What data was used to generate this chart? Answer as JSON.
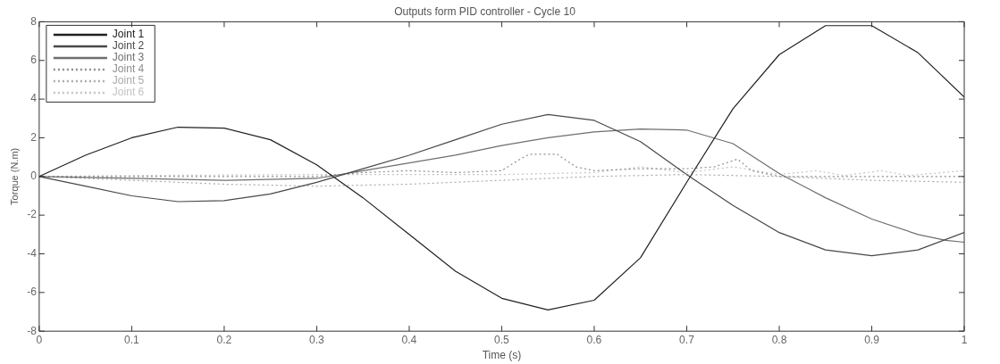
{
  "chart_data": {
    "type": "line",
    "title": "Outputs form PID controller - Cycle 10",
    "xlabel": "Time (s)",
    "ylabel": "Torque (N.m)",
    "xlim": [
      0,
      1
    ],
    "xticks": [
      0,
      0.1,
      0.2,
      0.3,
      0.4,
      0.5,
      0.6,
      0.7,
      0.8,
      0.9,
      1
    ],
    "ylim": [
      -8,
      8
    ],
    "yticks": [
      -8,
      -6,
      -4,
      -2,
      0,
      2,
      4,
      6,
      8
    ],
    "grid": false,
    "legend": "top left",
    "marker": "none",
    "series": [
      {
        "name": "Joint 1",
        "color": "#202020",
        "line_style": "solid",
        "x": [
          0,
          0.05,
          0.1,
          0.15,
          0.2,
          0.25,
          0.3,
          0.35,
          0.4,
          0.45,
          0.5,
          0.55,
          0.6,
          0.65,
          0.7,
          0.75,
          0.8,
          0.85,
          0.9,
          0.95,
          1
        ],
        "values": [
          0,
          1.1,
          2.0,
          2.55,
          2.5,
          1.9,
          0.6,
          -1.1,
          -3.0,
          -4.9,
          -6.3,
          -6.9,
          -6.4,
          -4.2,
          -0.3,
          3.5,
          6.3,
          7.8,
          7.8,
          6.4,
          4.1
        ]
      },
      {
        "name": "Joint 2",
        "color": "#484848",
        "line_style": "solid",
        "x": [
          0,
          0.05,
          0.1,
          0.15,
          0.2,
          0.25,
          0.3,
          0.35,
          0.4,
          0.45,
          0.5,
          0.55,
          0.6,
          0.65,
          0.7,
          0.75,
          0.8,
          0.85,
          0.9,
          0.95,
          1
        ],
        "values": [
          0,
          -0.5,
          -1.0,
          -1.3,
          -1.25,
          -0.9,
          -0.3,
          0.4,
          1.1,
          1.9,
          2.7,
          3.2,
          2.9,
          1.8,
          0.1,
          -1.5,
          -2.9,
          -3.8,
          -4.1,
          -3.8,
          -2.9
        ]
      },
      {
        "name": "Joint 3",
        "color": "#6e6e6e",
        "line_style": "solid",
        "x": [
          0,
          0.1,
          0.2,
          0.3,
          0.35,
          0.4,
          0.45,
          0.5,
          0.55,
          0.6,
          0.65,
          0.7,
          0.75,
          0.8,
          0.83,
          0.85,
          0.9,
          0.95,
          0.98,
          1
        ],
        "values": [
          0,
          -0.1,
          -0.2,
          -0.1,
          0.3,
          0.7,
          1.1,
          1.6,
          2.0,
          2.3,
          2.45,
          2.4,
          1.7,
          0.15,
          -0.6,
          -1.1,
          -2.2,
          -3.0,
          -3.3,
          -3.4
        ]
      },
      {
        "name": "Joint 4",
        "color": "#8e8e8e",
        "line_style": "dotted",
        "x": [
          0,
          0.1,
          0.2,
          0.3,
          0.35,
          0.4,
          0.45,
          0.5,
          0.52,
          0.53,
          0.56,
          0.58,
          0.6,
          0.65,
          0.7,
          0.73,
          0.755,
          0.77,
          0.8,
          0.85,
          0.9,
          1
        ],
        "values": [
          0,
          0,
          0,
          0,
          0.2,
          0.3,
          0.2,
          0.3,
          0.9,
          1.15,
          1.15,
          0.5,
          0.3,
          0.4,
          0.4,
          0.5,
          0.9,
          0.3,
          0,
          0,
          0,
          0
        ]
      },
      {
        "name": "Joint 5",
        "color": "#aaaaaa",
        "line_style": "dotted",
        "x": [
          0,
          0.1,
          0.2,
          0.3,
          0.4,
          0.5,
          0.6,
          0.7,
          0.8,
          0.9,
          1
        ],
        "values": [
          0,
          -0.2,
          -0.4,
          -0.5,
          -0.4,
          -0.2,
          0,
          0.1,
          0,
          -0.2,
          -0.3
        ]
      },
      {
        "name": "Joint 6",
        "color": "#c4c4c4",
        "line_style": "dotted",
        "x": [
          0,
          0.1,
          0.3,
          0.5,
          0.6,
          0.65,
          0.7,
          0.75,
          0.8,
          0.84,
          0.87,
          0.91,
          0.94,
          1
        ],
        "values": [
          0,
          0.05,
          0.1,
          0.1,
          0.2,
          0.5,
          0.2,
          0.5,
          0.1,
          0.3,
          0.05,
          0.3,
          0.05,
          0.3
        ]
      }
    ]
  }
}
